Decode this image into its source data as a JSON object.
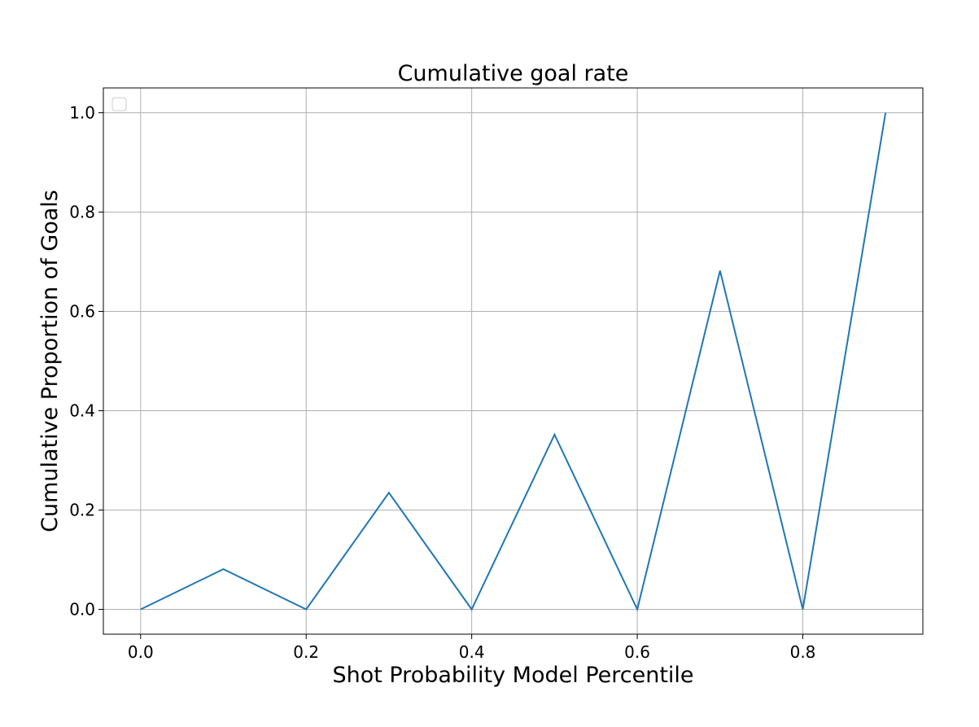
{
  "chart_data": {
    "type": "line",
    "title": "Cumulative goal rate",
    "xlabel": "Shot Probability Model Percentile",
    "ylabel": "Cumulative Proportion of Goals",
    "xlim": [
      -0.11,
      2.365
    ],
    "ylim": [
      -0.05,
      1.05
    ],
    "xlim_note": "",
    "x_ticks": [
      0.0,
      0.2,
      0.4,
      0.6,
      0.8
    ],
    "x_tick_labels": [
      "0.0",
      "0.2",
      "0.4",
      "0.6",
      "0.8"
    ],
    "y_ticks": [
      0.0,
      0.2,
      0.4,
      0.6,
      0.8,
      1.0
    ],
    "y_tick_labels": [
      "0.0",
      "0.2",
      "0.4",
      "0.6",
      "0.8",
      "1.0"
    ],
    "grid": true,
    "legend": {
      "placement": "top-left",
      "entries": []
    },
    "series": [
      {
        "color": "#1f77b4",
        "x": [
          0.0,
          0.1,
          0.2,
          0.3,
          0.4,
          0.5,
          0.6,
          0.7,
          0.8,
          0.9
        ],
        "y": [
          0.0,
          0.081,
          0.0,
          0.235,
          0.0,
          0.352,
          0.0,
          0.682,
          0.0,
          1.0
        ]
      }
    ]
  }
}
